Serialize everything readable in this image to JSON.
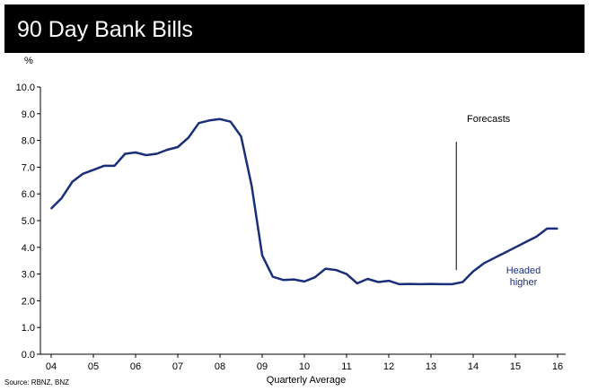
{
  "header": {
    "title": "90 Day Bank Bills"
  },
  "colors": {
    "header_bg": "#000000",
    "header_text": "#ffffff",
    "line": "#1a2f7a",
    "annotation": "#1a2f7a"
  },
  "chart_data": {
    "type": "line",
    "title": "",
    "ylabel": "%",
    "xlabel": "Quarterly Average",
    "source": "Source: RBNZ, BNZ",
    "ylim": [
      0,
      10
    ],
    "xlim": [
      2004,
      2016.2
    ],
    "yticks": [
      "0.0",
      "1.0",
      "2.0",
      "3.0",
      "4.0",
      "5.0",
      "6.0",
      "7.0",
      "8.0",
      "9.0",
      "10.0"
    ],
    "xticks": [
      "04",
      "05",
      "06",
      "07",
      "08",
      "09",
      "10",
      "11",
      "12",
      "13",
      "14",
      "15",
      "16"
    ],
    "series": [
      {
        "x": [
          2004.0,
          2004.25,
          2004.5,
          2004.75,
          2005.0,
          2005.25,
          2005.5,
          2005.75,
          2006.0,
          2006.25,
          2006.5,
          2006.75,
          2007.0,
          2007.25,
          2007.5,
          2007.75,
          2008.0,
          2008.25,
          2008.5,
          2008.75,
          2009.0,
          2009.25,
          2009.5,
          2009.75,
          2010.0,
          2010.25,
          2010.5,
          2010.75,
          2011.0,
          2011.25,
          2011.5,
          2011.75,
          2012.0,
          2012.25,
          2012.5,
          2012.75,
          2013.0,
          2013.25,
          2013.5,
          2013.75,
          2014.0,
          2014.25,
          2014.5,
          2014.75,
          2015.0,
          2015.25,
          2015.5,
          2015.75,
          2016.0
        ],
        "values": [
          5.45,
          5.85,
          6.45,
          6.75,
          6.9,
          7.05,
          7.05,
          7.5,
          7.55,
          7.45,
          7.5,
          7.65,
          7.75,
          8.1,
          8.65,
          8.75,
          8.8,
          8.7,
          8.15,
          6.3,
          3.7,
          2.9,
          2.78,
          2.8,
          2.72,
          2.88,
          3.2,
          3.15,
          3.0,
          2.65,
          2.82,
          2.7,
          2.75,
          2.62,
          2.63,
          2.62,
          2.63,
          2.62,
          2.62,
          2.7,
          3.1,
          3.4,
          3.6,
          3.8,
          4.0,
          4.2,
          4.4,
          4.7,
          4.7
        ]
      }
    ],
    "annotations": {
      "forecasts": "Forecasts",
      "headed_line1": "Headed",
      "headed_line2": "higher"
    },
    "forecast_divider_x": 2013.6,
    "forecast_divider_y": [
      3.15,
      7.95
    ]
  }
}
